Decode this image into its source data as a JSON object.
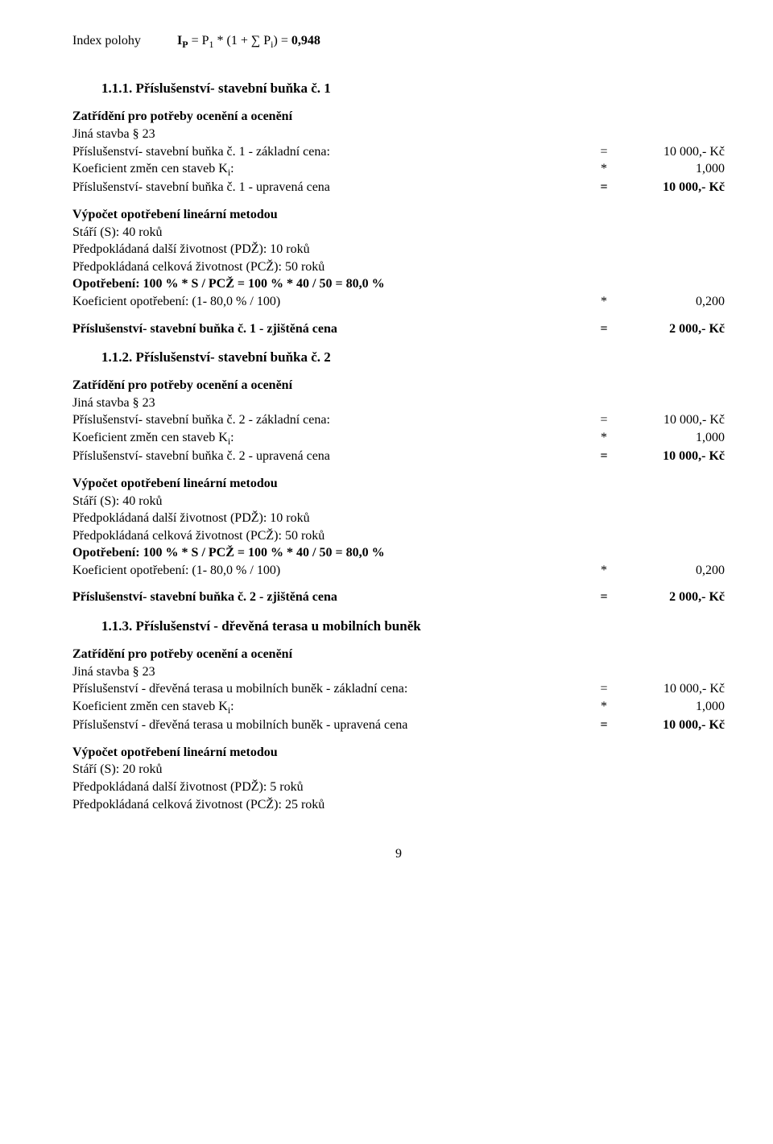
{
  "index": {
    "label": "Index polohy",
    "formula_left": "I",
    "formula_sub1": "P",
    "formula_mid1": " = P",
    "formula_sub2": "1",
    "formula_mid2": " * (1 + ∑ P",
    "formula_sub3": "i",
    "formula_mid3": ") = ",
    "formula_val": "0,948"
  },
  "s1": {
    "title": "1.1.1. Příslušenství- stavební buňka č. 1",
    "h_zatr": "Zatřídění pro potřeby ocenění a ocenění",
    "jina": "Jiná stavba § 23",
    "r1_l": "Příslušenství- stavební buňka č. 1 - základní cena:",
    "r1_m": "=",
    "r1_r": "10 000,- Kč",
    "r2_l_a": "Koeficient změn cen staveb K",
    "r2_sub": "i",
    "r2_l_b": ":",
    "r2_m": "*",
    "r2_r": "1,000",
    "r3_l": "Příslušenství- stavební buňka č. 1 - upravená cena",
    "r3_m": "=",
    "r3_r": "10 000,- Kč",
    "h_vyp": "Výpočet opotřebení lineární metodou",
    "stari": "Stáří (S): 40 roků",
    "pdz": "Předpokládaná další životnost (PDŽ): 10 roků",
    "pcz": "Předpokládaná celková životnost (PCŽ): 50 roků",
    "opot": "Opotřebení: 100 % * S / PCŽ = 100 % * 40 / 50 = 80,0 %",
    "koef_l": "Koeficient opotřebení: (1- 80,0 % / 100)",
    "koef_m": "*",
    "koef_r": "0,200",
    "zj_l": "Příslušenství- stavební buňka č. 1 - zjištěná cena",
    "zj_m": "=",
    "zj_r": "2 000,- Kč"
  },
  "s2": {
    "title": "1.1.2. Příslušenství- stavební buňka č. 2",
    "h_zatr": "Zatřídění pro potřeby ocenění a ocenění",
    "jina": "Jiná stavba § 23",
    "r1_l": "Příslušenství- stavební buňka č. 2 - základní cena:",
    "r1_m": "=",
    "r1_r": "10 000,- Kč",
    "r2_l_a": "Koeficient změn cen staveb K",
    "r2_sub": "i",
    "r2_l_b": ":",
    "r2_m": "*",
    "r2_r": "1,000",
    "r3_l": "Příslušenství- stavební buňka č. 2 - upravená cena",
    "r3_m": "=",
    "r3_r": "10 000,- Kč",
    "h_vyp": "Výpočet opotřebení lineární metodou",
    "stari": "Stáří (S): 40 roků",
    "pdz": "Předpokládaná další životnost (PDŽ): 10 roků",
    "pcz": "Předpokládaná celková životnost (PCŽ): 50 roků",
    "opot": "Opotřebení: 100 % * S / PCŽ = 100 % * 40 / 50 = 80,0 %",
    "koef_l": "Koeficient opotřebení: (1- 80,0 % / 100)",
    "koef_m": "*",
    "koef_r": "0,200",
    "zj_l": "Příslušenství- stavební buňka č. 2 - zjištěná cena",
    "zj_m": "=",
    "zj_r": "2 000,- Kč"
  },
  "s3": {
    "title": "1.1.3. Příslušenství - dřevěná terasa u mobilních buněk",
    "h_zatr": "Zatřídění pro potřeby ocenění a ocenění",
    "jina": "Jiná stavba § 23",
    "r1_l": "Příslušenství - dřevěná terasa u mobilních buněk - základní cena:",
    "r1_m": "=",
    "r1_r": "10 000,- Kč",
    "r2_l_a": "Koeficient změn cen staveb K",
    "r2_sub": "i",
    "r2_l_b": ":",
    "r2_m": "*",
    "r2_r": "1,000",
    "r3_l": "Příslušenství - dřevěná terasa u mobilních buněk - upravená cena",
    "r3_m": "=",
    "r3_r": "10 000,- Kč",
    "h_vyp": "Výpočet opotřebení lineární metodou",
    "stari": "Stáří (S): 20 roků",
    "pdz": "Předpokládaná další životnost (PDŽ): 5 roků",
    "pcz": "Předpokládaná celková životnost (PCŽ): 25 roků"
  },
  "page": "9"
}
